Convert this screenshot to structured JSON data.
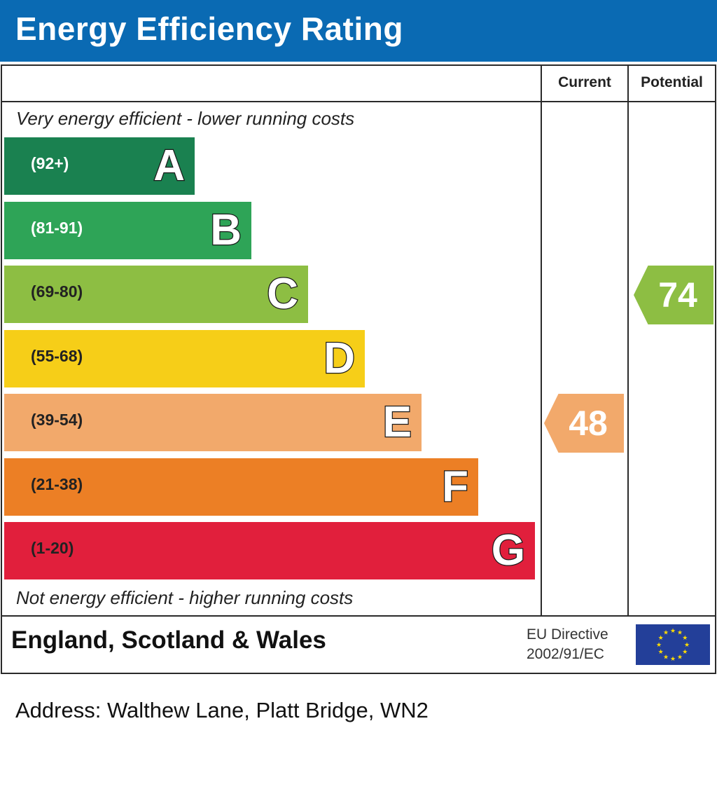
{
  "header": {
    "title": "Energy Efficiency Rating"
  },
  "columns": {
    "current": "Current",
    "potential": "Potential"
  },
  "captions": {
    "top": "Very energy efficient - lower running costs",
    "bottom": "Not energy efficient - higher running costs"
  },
  "chart_data": {
    "type": "bar",
    "title": "Energy Efficiency Rating",
    "categories": [
      "A",
      "B",
      "C",
      "D",
      "E",
      "F",
      "G"
    ],
    "bands": [
      {
        "letter": "A",
        "range": "(92+)",
        "color": "#1a8150",
        "text_color": "#ffffff"
      },
      {
        "letter": "B",
        "range": "(81-91)",
        "color": "#2ea457",
        "text_color": "#ffffff"
      },
      {
        "letter": "C",
        "range": "(69-80)",
        "color": "#8dbe43",
        "text_color": "#222222"
      },
      {
        "letter": "D",
        "range": "(55-68)",
        "color": "#f6ce18",
        "text_color": "#222222"
      },
      {
        "letter": "E",
        "range": "(39-54)",
        "color": "#f2a96b",
        "text_color": "#222222"
      },
      {
        "letter": "F",
        "range": "(21-38)",
        "color": "#ec7f25",
        "text_color": "#222222"
      },
      {
        "letter": "G",
        "range": "(1-20)",
        "color": "#e11f3c",
        "text_color": "#222222"
      }
    ],
    "current": {
      "value": 48,
      "band": "E",
      "color": "#f2a96b"
    },
    "potential": {
      "value": 74,
      "band": "C",
      "color": "#8dbe43"
    }
  },
  "footer": {
    "country": "England, Scotland & Wales",
    "directive_line1": "EU Directive",
    "directive_line2": "2002/91/EC"
  },
  "address": "Address: Walthew Lane, Platt Bridge, WN2"
}
